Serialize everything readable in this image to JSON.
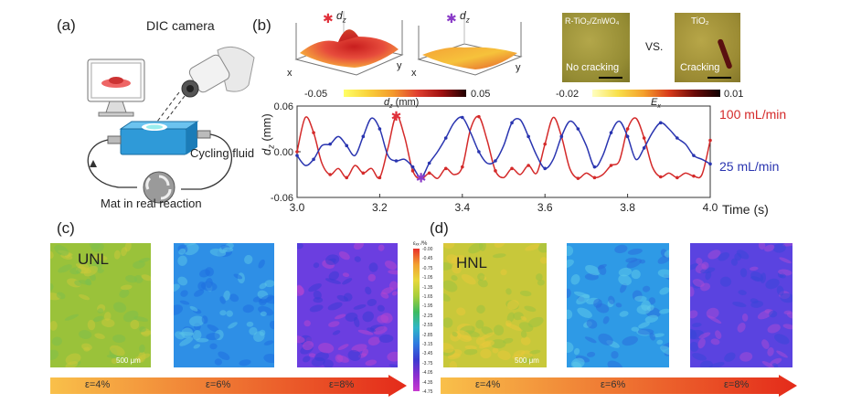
{
  "panels": {
    "a": {
      "label": "(a)",
      "dic_camera": "DIC camera",
      "cycling_fluid": "Cycling fluid",
      "mat_label": "Mat in real reaction"
    },
    "b": {
      "label": "(b)",
      "surface_plot_1": {
        "label": "d",
        "sub": "z",
        "axis_x": "x",
        "axis_y": "y",
        "star_color": "#e0303a"
      },
      "surface_plot_2": {
        "label": "d",
        "sub": "z",
        "axis_x": "x",
        "axis_y": "y",
        "star_color": "#8a3cc8"
      },
      "dz_colorbar": {
        "min": "-0.05",
        "max": "0.05",
        "label": "d",
        "label_sub": "z",
        "label_unit": " (mm)"
      },
      "micro_1": {
        "title": "R-TiO₂/ZnWO₄",
        "caption": "No cracking"
      },
      "vs": "VS.",
      "micro_2": {
        "title": "TiO₂",
        "caption": "Cracking"
      },
      "ex_colorbar": {
        "min": "-0.02",
        "max": "0.01",
        "label": "E",
        "label_sub": "x"
      }
    },
    "c": {
      "label": "(c)",
      "sample": "UNL",
      "scale": "500 μm",
      "colorbar_title": "εₓₓ /%",
      "colorbar_ticks": [
        "-0.00",
        "-0.45",
        "-0.75",
        "-1.05",
        "-1.35",
        "-1.65",
        "-1.95",
        "-2.25",
        "-2.55",
        "-2.85",
        "-3.15",
        "-3.45",
        "-3.75",
        "-4.05",
        "-4.35",
        "-4.75"
      ],
      "strains": [
        "ε=4%",
        "ε=6%",
        "ε=8%"
      ]
    },
    "d": {
      "label": "(d)",
      "sample": "HNL",
      "scale": "500 μm",
      "strains": [
        "ε=4%",
        "ε=6%",
        "ε=8%"
      ]
    }
  },
  "chart_data": {
    "type": "line",
    "xlabel": "Time (s)",
    "ylabel": "d",
    "ylabel_sub": "z",
    "ylabel_unit": " (mm)",
    "xlim": [
      3.0,
      4.0
    ],
    "ylim": [
      -0.06,
      0.06
    ],
    "x_ticks": [
      "3.0",
      "3.2",
      "3.4",
      "3.6",
      "3.8",
      "4.0"
    ],
    "y_ticks": [
      "0.06",
      "0.00",
      "-0.06"
    ],
    "series": [
      {
        "name": "100 mL/min",
        "color": "#d42a2a",
        "x": [
          3.0,
          3.02,
          3.04,
          3.06,
          3.08,
          3.1,
          3.12,
          3.14,
          3.16,
          3.18,
          3.2,
          3.22,
          3.24,
          3.26,
          3.28,
          3.3,
          3.32,
          3.34,
          3.36,
          3.38,
          3.4,
          3.42,
          3.44,
          3.46,
          3.48,
          3.5,
          3.52,
          3.54,
          3.56,
          3.58,
          3.6,
          3.62,
          3.64,
          3.66,
          3.68,
          3.7,
          3.72,
          3.74,
          3.76,
          3.78,
          3.8,
          3.82,
          3.84,
          3.86,
          3.88,
          3.9,
          3.92,
          3.94,
          3.96,
          3.98,
          4.0
        ],
        "y": [
          0.0,
          0.045,
          0.025,
          -0.015,
          -0.03,
          -0.022,
          -0.034,
          -0.018,
          -0.028,
          -0.022,
          -0.034,
          0.005,
          0.047,
          0.02,
          -0.025,
          -0.036,
          -0.028,
          -0.035,
          -0.022,
          -0.03,
          -0.02,
          0.03,
          0.046,
          0.015,
          -0.025,
          -0.034,
          -0.022,
          -0.03,
          -0.018,
          -0.028,
          0.01,
          0.045,
          0.02,
          -0.022,
          -0.035,
          -0.028,
          -0.034,
          -0.03,
          -0.018,
          -0.012,
          0.03,
          0.044,
          0.018,
          -0.02,
          -0.033,
          -0.028,
          -0.034,
          -0.028,
          -0.032,
          -0.03,
          0.015
        ]
      },
      {
        "name": "25 mL/min",
        "color": "#2a35b0",
        "x": [
          3.0,
          3.02,
          3.04,
          3.06,
          3.08,
          3.1,
          3.12,
          3.14,
          3.16,
          3.18,
          3.2,
          3.22,
          3.24,
          3.26,
          3.28,
          3.3,
          3.32,
          3.34,
          3.36,
          3.38,
          3.4,
          3.42,
          3.44,
          3.46,
          3.48,
          3.5,
          3.52,
          3.54,
          3.56,
          3.58,
          3.6,
          3.62,
          3.64,
          3.66,
          3.68,
          3.7,
          3.72,
          3.74,
          3.76,
          3.78,
          3.8,
          3.82,
          3.84,
          3.86,
          3.88,
          3.9,
          3.92,
          3.94,
          3.96,
          3.98,
          4.0
        ],
        "y": [
          -0.005,
          -0.018,
          -0.01,
          0.008,
          0.01,
          0.02,
          0.008,
          -0.005,
          0.02,
          0.044,
          0.03,
          -0.005,
          -0.012,
          -0.01,
          -0.02,
          -0.034,
          -0.015,
          0.0,
          0.018,
          0.038,
          0.045,
          0.025,
          0.0,
          -0.015,
          -0.012,
          0.008,
          0.038,
          0.042,
          0.02,
          -0.005,
          -0.022,
          -0.01,
          0.02,
          0.04,
          0.03,
          0.008,
          -0.02,
          -0.005,
          0.025,
          0.04,
          0.02,
          -0.01,
          0.005,
          0.025,
          0.038,
          0.03,
          0.018,
          0.01,
          -0.005,
          -0.01,
          -0.016
        ]
      }
    ],
    "markers": [
      {
        "series": "100 mL/min",
        "x": 3.24,
        "y": 0.047,
        "color": "#e0303a"
      },
      {
        "series": "25 mL/min",
        "x": 3.3,
        "y": -0.034,
        "color": "#8a3cc8"
      }
    ]
  }
}
